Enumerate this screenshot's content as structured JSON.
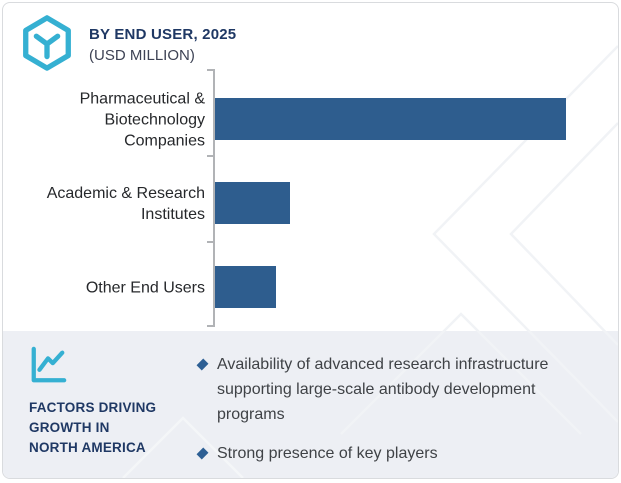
{
  "header": {
    "logo_icon": "hexagon-y-logo-icon",
    "title": "BY END USER, 2025",
    "subtitle": "(USD MILLION)",
    "title_color": "#1f3864",
    "accent_teal": "#35b0d2"
  },
  "chart_data": {
    "type": "bar",
    "orientation": "horizontal",
    "title": "BY END USER, 2025",
    "unit_label": "(USD MILLION)",
    "categories": [
      "Pharmaceutical & Biotechnology Companies",
      "Academic & Research Institutes",
      "Other End Users"
    ],
    "values_pct_of_max": [
      100,
      21.4,
      17.4
    ],
    "value_labels_shown": false,
    "axis_tick_value_labels_shown": false,
    "gridlines": false,
    "legend": "none",
    "bar_color": "#2e5d8e",
    "axis_color": "#b1b3b6"
  },
  "panel": {
    "icon": "line-chart-icon",
    "title_lines": [
      "FACTORS DRIVING",
      "GROWTH IN",
      "NORTH AMERICA"
    ],
    "bullet_icon": "diamond-icon",
    "bullets": [
      "Availability of advanced research infrastructure supporting large-scale antibody development programs",
      "Strong presence of key players"
    ],
    "background_color": "#edeff4",
    "bullet_color": "#2d5f94",
    "text_color": "#3f4246"
  },
  "watermark": {
    "icon": "chevron-watermark-icon",
    "color": "#f1f3f6"
  }
}
